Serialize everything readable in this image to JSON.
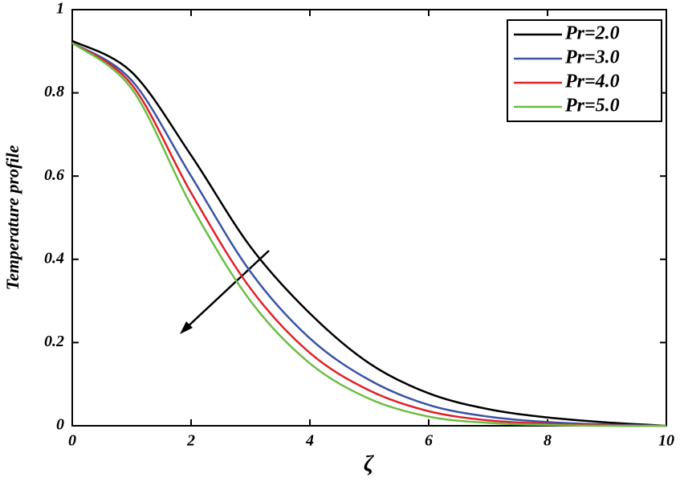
{
  "chart_data": {
    "type": "line",
    "xlabel": "ζ",
    "ylabel": "Temperature profile",
    "x": [
      0,
      1,
      2,
      3,
      4,
      5,
      6,
      7,
      8,
      9,
      10
    ],
    "series": [
      {
        "name": "Pr=2.0",
        "color": "#000000",
        "values": [
          0.925,
          0.85,
          0.65,
          0.43,
          0.27,
          0.15,
          0.078,
          0.04,
          0.02,
          0.008,
          0
        ]
      },
      {
        "name": "Pr=3.0",
        "color": "#3a53a4",
        "values": [
          0.92,
          0.83,
          0.6,
          0.37,
          0.21,
          0.11,
          0.05,
          0.022,
          0.009,
          0.003,
          0
        ]
      },
      {
        "name": "Pr=4.0",
        "color": "#e0202a",
        "values": [
          0.92,
          0.82,
          0.56,
          0.33,
          0.175,
          0.085,
          0.035,
          0.013,
          0.005,
          0.001,
          0
        ]
      },
      {
        "name": "Pr=5.0",
        "color": "#6cbd45",
        "values": [
          0.92,
          0.81,
          0.53,
          0.3,
          0.15,
          0.065,
          0.022,
          0.007,
          0.002,
          0,
          0
        ]
      }
    ],
    "xlim": [
      0,
      10
    ],
    "xticks": [
      0,
      2,
      4,
      6,
      8,
      10
    ],
    "ylim": [
      0,
      1
    ],
    "yticks": [
      0,
      0.2,
      0.4,
      0.6,
      0.8,
      1
    ],
    "legend": "upper right",
    "grid": false
  }
}
